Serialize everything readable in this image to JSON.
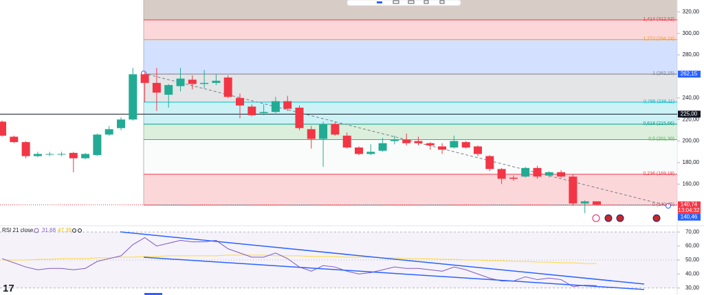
{
  "chart_data": [
    {
      "type": "candlestick",
      "categories": [
        null,
        null,
        null,
        null,
        null,
        null,
        null,
        null,
        null,
        null,
        null,
        null,
        null,
        null,
        null,
        null,
        null,
        null,
        null,
        null,
        null,
        null,
        null,
        null,
        null,
        null,
        null,
        null,
        null,
        null,
        null,
        null,
        null,
        null,
        null,
        null,
        null,
        null,
        null,
        null,
        null,
        null,
        null,
        null,
        null,
        null,
        null,
        null,
        null,
        null,
        null
      ],
      "open": [
        218,
        204,
        199,
        186,
        188,
        188,
        189,
        184,
        187,
        206,
        212,
        220,
        262,
        254,
        243,
        251,
        257,
        253,
        254,
        259,
        240,
        232,
        226,
        227,
        237,
        231,
        211,
        202,
        216,
        205,
        194,
        188,
        191,
        200,
        201,
        200,
        198,
        195,
        194,
        199,
        195,
        186,
        174,
        166,
        167,
        175,
        168,
        171,
        167,
        142,
        144
      ],
      "high": [
        219,
        205,
        200,
        190,
        190,
        190,
        190,
        189,
        207,
        214,
        222,
        268,
        264,
        268,
        253,
        268,
        261,
        266,
        262,
        261,
        244,
        234,
        234,
        241,
        242,
        233,
        214,
        218,
        218,
        208,
        195,
        197,
        203,
        205,
        207,
        204,
        199,
        198,
        205,
        200,
        196,
        187,
        175,
        168,
        176,
        177,
        172,
        173,
        169,
        145,
        144
      ],
      "low": [
        204,
        198,
        184,
        185,
        186,
        186,
        171,
        183,
        186,
        205,
        210,
        219,
        236,
        228,
        231,
        246,
        248,
        249,
        252,
        240,
        221,
        223,
        224,
        226,
        228,
        210,
        193,
        176,
        205,
        193,
        187,
        187,
        190,
        197,
        196,
        196,
        192,
        188,
        193,
        193,
        186,
        172,
        160,
        163,
        166,
        165,
        166,
        166,
        140,
        133,
        140
      ],
      "close": [
        205,
        199,
        186,
        188,
        188,
        188,
        184,
        188,
        206,
        211,
        220,
        262,
        254,
        245,
        252,
        258,
        253,
        254,
        256,
        241,
        233,
        224,
        227,
        237,
        230,
        212,
        202,
        216,
        206,
        194,
        188,
        190,
        198,
        201,
        198,
        198,
        196,
        192,
        200,
        194,
        188,
        174,
        165,
        165,
        175,
        167,
        171,
        167,
        142,
        144,
        141
      ],
      "up_color": "#22ab94",
      "down_color": "#f23645",
      "ylim": [
        122,
        331
      ],
      "yticks": [
        {
          "value": 320,
          "label": "320,00"
        },
        {
          "value": 300,
          "label": "300,00"
        },
        {
          "value": 280,
          "label": "280,00"
        },
        {
          "value": 240,
          "label": "240,00"
        },
        {
          "value": 220,
          "label": "220,00"
        },
        {
          "value": 200,
          "label": "200,00"
        },
        {
          "value": 180,
          "label": "180,00"
        },
        {
          "value": 160,
          "label": "160,00"
        }
      ],
      "fib_levels": [
        {
          "value": 312.52,
          "label": "1,414 (312,52)",
          "color": "#f23645",
          "band_color": "#f23645"
        },
        {
          "value": 294.24,
          "label": "1,272 (294,24)",
          "color": "#ff9800",
          "band_color": "#2962ff"
        },
        {
          "value": 262.15,
          "label": "1 (262,15)",
          "color": "#787b86",
          "band_color": "#787b86"
        },
        {
          "value": 236.11,
          "label": "0,786 (236,11)",
          "color": "#00bcd4",
          "band_color": "#00bcd4"
        },
        {
          "value": 215.66,
          "label": "0,618 (215,66)",
          "color": "#089981",
          "band_color": "#4caf50"
        },
        {
          "value": 201.3,
          "label": "0,5 (201,30)",
          "color": "#4caf50",
          "band_color": "#e8f2ec"
        },
        {
          "value": 169.18,
          "label": "0,236 (169,18)",
          "color": "#f23645",
          "band_color": "#f23645"
        },
        {
          "value": 140.46,
          "label": "0 (140,46)",
          "color": "#787b86",
          "band_color": null
        }
      ],
      "horizontal_line": {
        "value": 225,
        "color": "#131722"
      },
      "price_labels": [
        {
          "value": 262.15,
          "label": "262,15",
          "color": "#2962ff"
        },
        {
          "value": 225,
          "label": "225,00",
          "color": "#131722"
        },
        {
          "value": 140.74,
          "label": "140,74",
          "sub": "13:04:32",
          "color": "#f23645"
        },
        {
          "value": 140.46,
          "label": "140,46",
          "color": "#2962ff"
        }
      ]
    },
    {
      "type": "line",
      "title": "RSI 21 close",
      "legend_values": [
        "31,68",
        "47,39"
      ],
      "categories": [
        null,
        null,
        null,
        null,
        null,
        null,
        null,
        null,
        null,
        null,
        null,
        null,
        null,
        null,
        null,
        null,
        null,
        null,
        null,
        null,
        null,
        null,
        null,
        null,
        null,
        null,
        null,
        null,
        null,
        null,
        null,
        null,
        null,
        null,
        null,
        null,
        null,
        null,
        null,
        null,
        null,
        null,
        null,
        null,
        null,
        null,
        null,
        null,
        null,
        null,
        null
      ],
      "series": [
        {
          "name": "RSI",
          "color": "#7e57c2",
          "values": [
            51,
            48,
            45,
            43,
            44,
            44,
            43,
            44,
            49,
            51,
            53,
            61,
            66,
            60,
            62,
            64,
            63,
            63,
            64,
            58,
            55,
            52,
            52,
            55,
            51,
            45,
            42,
            46,
            45,
            42,
            40,
            41,
            43,
            45,
            44,
            44,
            43,
            42,
            45,
            43,
            40,
            37,
            35,
            35,
            38,
            36,
            37,
            36,
            31,
            32,
            31.68
          ]
        },
        {
          "name": "MA",
          "color": "#fdd835",
          "values": [
            50,
            50,
            50,
            50.5,
            50.5,
            51,
            51,
            51,
            51.5,
            51.5,
            52,
            52,
            52.5,
            52.5,
            53,
            53,
            53,
            53,
            53,
            53.5,
            53.5,
            53.5,
            53.5,
            53,
            53,
            53,
            52.5,
            52.5,
            52.5,
            52,
            52,
            52,
            51.5,
            51.5,
            51,
            51,
            51,
            50.5,
            50.5,
            50,
            50,
            49.5,
            49.5,
            49,
            49,
            48.5,
            48.5,
            48,
            48,
            47.5,
            47.39
          ]
        }
      ],
      "ylim": [
        25,
        74
      ],
      "yticks": [
        {
          "value": 70,
          "label": "70,00"
        },
        {
          "value": 60,
          "label": "60,00"
        },
        {
          "value": 50,
          "label": "50,00"
        },
        {
          "value": 40,
          "label": "40,00"
        },
        {
          "value": 30,
          "label": "30,00"
        }
      ],
      "band": [
        {
          "value": 30
        },
        {
          "value": 70
        }
      ]
    }
  ]
}
